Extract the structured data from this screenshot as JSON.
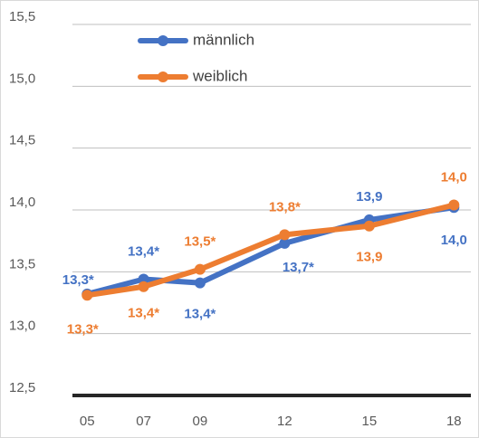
{
  "chart_data": {
    "type": "line",
    "x": [
      5,
      7,
      9,
      12,
      15,
      18
    ],
    "xticks": [
      {
        "value": 5,
        "label": "05"
      },
      {
        "value": 7,
        "label": "07"
      },
      {
        "value": 9,
        "label": "09"
      },
      {
        "value": 12,
        "label": "12"
      },
      {
        "value": 15,
        "label": "15"
      },
      {
        "value": 18,
        "label": "18"
      }
    ],
    "xlim": [
      3.9,
      18.6
    ],
    "ylim": [
      12.5,
      15.5
    ],
    "yticks": [
      {
        "value": 12.5,
        "label": "12,5"
      },
      {
        "value": 13.0,
        "label": "13,0"
      },
      {
        "value": 13.5,
        "label": "13,5"
      },
      {
        "value": 14.0,
        "label": "14,0"
      },
      {
        "value": 14.5,
        "label": "14,5"
      },
      {
        "value": 15.0,
        "label": "15,0"
      },
      {
        "value": 15.5,
        "label": "15,5"
      }
    ],
    "grid": true,
    "legend": "top-left",
    "series": [
      {
        "name": "männlich",
        "color": "#4472c4",
        "values": [
          13.32,
          13.44,
          13.41,
          13.73,
          13.92,
          14.02
        ],
        "value_labels": [
          "13,3*",
          "13,4*",
          "13,4*",
          "13,7*",
          "13,9",
          "14,0"
        ]
      },
      {
        "name": "weiblich",
        "color": "#ed7d31",
        "values": [
          13.31,
          13.38,
          13.52,
          13.8,
          13.87,
          14.04
        ],
        "value_labels": [
          "13,3*",
          "13,4*",
          "13,5*",
          "13,8*",
          "13,9",
          "14,0"
        ]
      }
    ]
  }
}
